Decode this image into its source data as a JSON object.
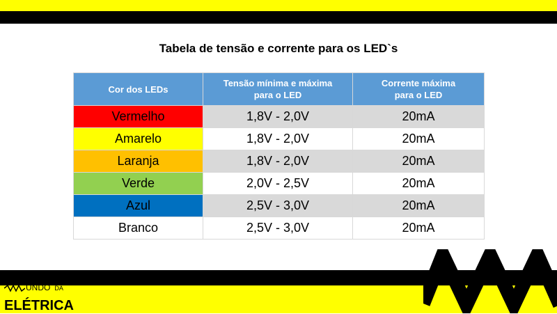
{
  "title": "Tabela de tensão e corrente para os LED`s",
  "table": {
    "headers": [
      "Cor dos LEDs",
      "Tensão mínima e máxima\npara o LED",
      "Corrente máxima\npara o LED"
    ],
    "rows": [
      {
        "color_name": "Vermelho",
        "swatch": "#ff0000",
        "voltage": "1,8V - 2,0V",
        "current": "20mA"
      },
      {
        "color_name": "Amarelo",
        "swatch": "#ffff00",
        "voltage": "1,8V - 2,0V",
        "current": "20mA"
      },
      {
        "color_name": "Laranja",
        "swatch": "#ffc000",
        "voltage": "1,8V - 2,0V",
        "current": "20mA"
      },
      {
        "color_name": "Verde",
        "swatch": "#92d050",
        "voltage": "2,0V - 2,5V",
        "current": "20mA"
      },
      {
        "color_name": "Azul",
        "swatch": "#0070c0",
        "voltage": "2,5V - 3,0V",
        "current": "20mA"
      },
      {
        "color_name": "Branco",
        "swatch": "#ffffff",
        "voltage": "2,5V - 3,0V",
        "current": "20mA"
      }
    ]
  },
  "logo": {
    "line1": "UNDO",
    "line1_small": "DA",
    "line2": "ELÉTRICA"
  },
  "colors": {
    "header_bg": "#5b9bd5",
    "brand_yellow": "#ffff00",
    "brand_black": "#000000",
    "row_shade": "#d9d9d9"
  }
}
